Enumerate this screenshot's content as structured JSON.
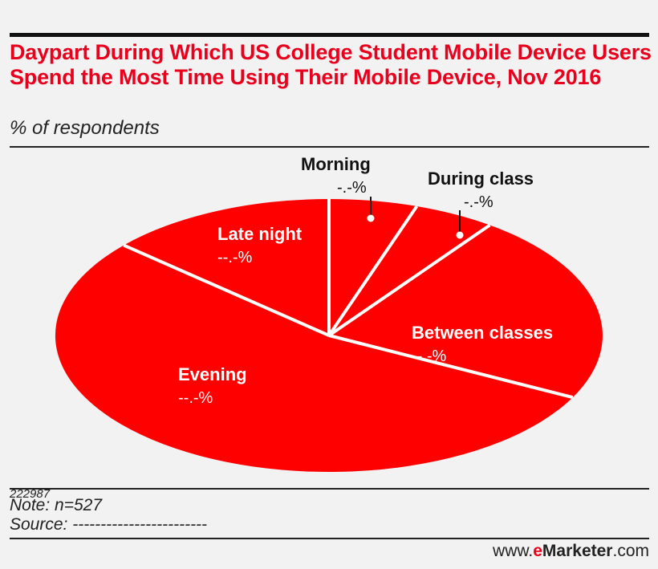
{
  "header": {
    "title": "Daypart During Which US College Student Mobile Device Users Spend the Most Time Using Their Mobile Device, Nov 2016",
    "subtitle": "% of respondents"
  },
  "footer": {
    "id": "222987",
    "note": "Note: n=527",
    "source": "Source: ------------------------",
    "brand_prefix": "www.",
    "brand_e": "e",
    "brand_name": "Marketer",
    "brand_suffix": ".com"
  },
  "colors": {
    "accent": "#e8001c",
    "slice_fill": "#ff0000",
    "divider": "#ffffff",
    "text_dark": "#111111"
  },
  "chart_data": {
    "type": "pie",
    "title": "Daypart During Which US College Student Mobile Device Users Spend the Most Time Using Their Mobile Device, Nov 2016",
    "unit": "% of respondents",
    "note": "values masked in source image (shown as dashes); slice shares estimated from the drawing",
    "slices": [
      {
        "name": "Morning",
        "display": "-.-%",
        "estimated_share": 5.2
      },
      {
        "name": "During class",
        "display": "-.-%",
        "estimated_share": 4.8
      },
      {
        "name": "Between classes",
        "display": "--.-%",
        "estimated_share": 22.5
      },
      {
        "name": "Evening",
        "display": "--.-%",
        "estimated_share": 54.0
      },
      {
        "name": "Late night",
        "display": "--.-%",
        "estimated_share": 13.5
      }
    ]
  }
}
